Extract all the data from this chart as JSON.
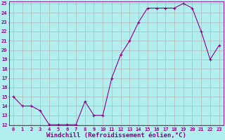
{
  "x": [
    0,
    1,
    2,
    3,
    4,
    5,
    6,
    7,
    8,
    9,
    10,
    11,
    12,
    13,
    14,
    15,
    16,
    17,
    18,
    19,
    20,
    21,
    22,
    23
  ],
  "y": [
    15,
    14,
    14,
    13.5,
    12,
    12,
    12,
    12,
    14.5,
    13,
    13,
    17,
    19.5,
    21,
    23,
    24.5,
    24.5,
    24.5,
    24.5,
    25,
    24.5,
    22,
    19,
    20.5
  ],
  "line_color": "#880088",
  "marker": "+",
  "background_color": "#b2eeee",
  "grid_color": "#aaaaaa",
  "xlabel": "Windchill (Refroidissement éolien,°C)",
  "ylim": [
    12,
    25
  ],
  "xlim": [
    -0.5,
    23.5
  ],
  "yticks": [
    12,
    13,
    14,
    15,
    16,
    17,
    18,
    19,
    20,
    21,
    22,
    23,
    24,
    25
  ],
  "xticks": [
    0,
    1,
    2,
    3,
    4,
    5,
    6,
    7,
    8,
    9,
    10,
    11,
    12,
    13,
    14,
    15,
    16,
    17,
    18,
    19,
    20,
    21,
    22,
    23
  ],
  "tick_fontsize": 5.0,
  "xlabel_fontsize": 6.5,
  "line_width": 0.8,
  "marker_size": 3,
  "marker_edge_width": 0.8
}
